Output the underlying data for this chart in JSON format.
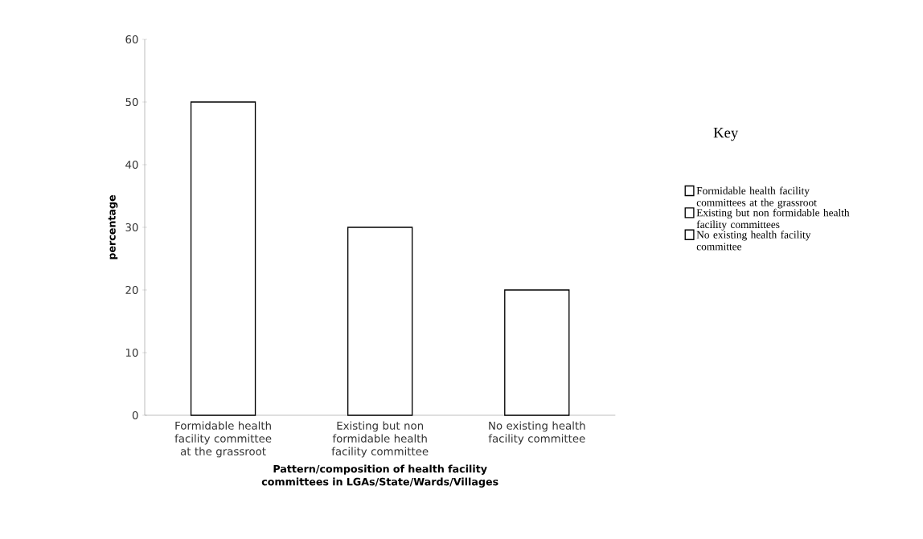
{
  "chart_data": {
    "type": "bar",
    "xlabel": "Pattern/composition of health facility committees in LGAs/State/Wards/Villages",
    "ylabel": "percentage",
    "legend_title": "Key",
    "legend": "right",
    "categories": [
      "Formidable health facility committee at the grassroot",
      "Existing but non formidable health facility committee",
      "No existing health facility committee"
    ],
    "series": [
      {
        "name": "Formidable health facility committees at the grassroot",
        "color": "#000000",
        "values": [
          50,
          null,
          null
        ]
      },
      {
        "name": "Existing but non formidable health facility committees",
        "color": "#000000",
        "values": [
          null,
          30,
          null
        ]
      },
      {
        "name": "No existing health facility committee",
        "color": "#000000",
        "values": [
          null,
          null,
          20
        ]
      }
    ],
    "ylim": [
      0,
      60
    ],
    "yticks": [
      0,
      10,
      20,
      30,
      40,
      50,
      60
    ],
    "grid": false
  }
}
